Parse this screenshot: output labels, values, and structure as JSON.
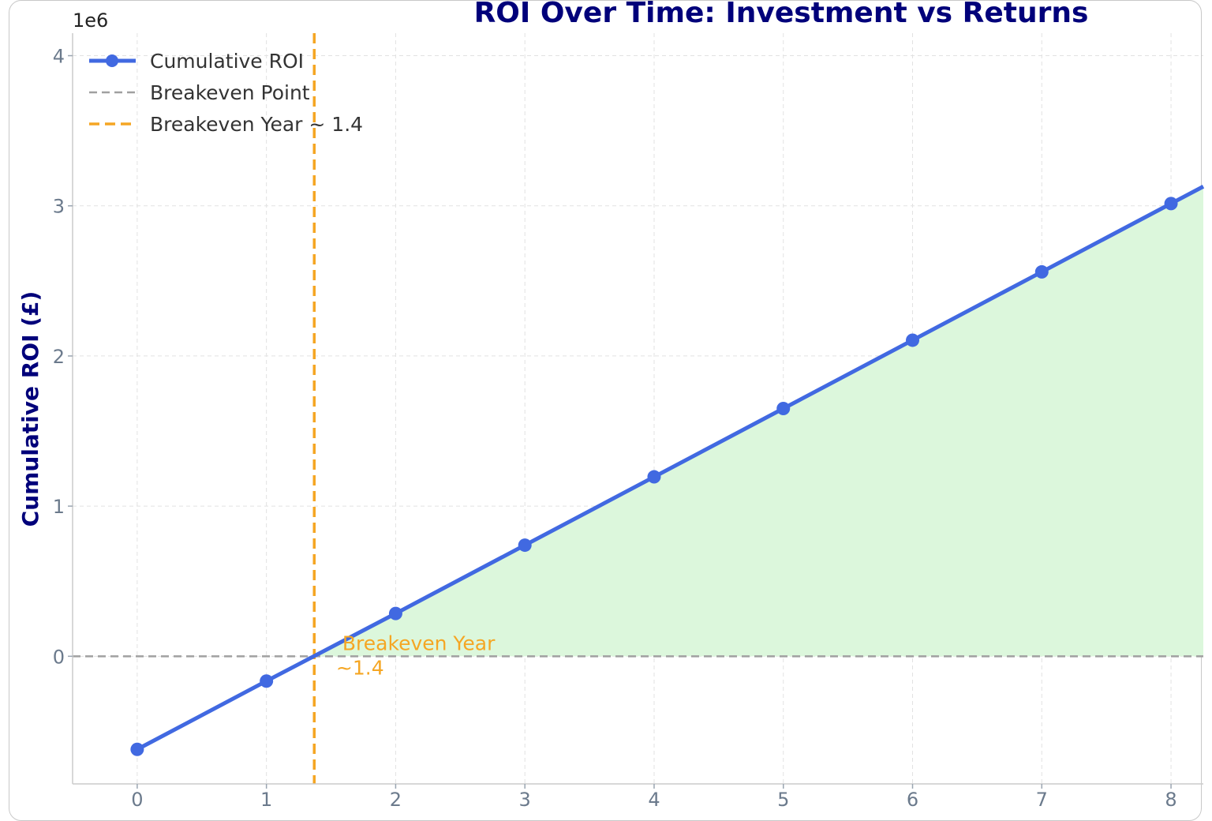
{
  "chart_data": {
    "type": "line",
    "title": "ROI Over Time: Investment vs Returns",
    "xlabel": "",
    "ylabel": "Cumulative ROI (£)",
    "y_offset_label": "1e6",
    "x": [
      0,
      1,
      2,
      3,
      4,
      5,
      6,
      7,
      8
    ],
    "x_ticks": [
      0,
      1,
      2,
      3,
      4,
      5,
      6,
      7,
      8
    ],
    "y_ticks": [
      0,
      1,
      2,
      3,
      4
    ],
    "xlim": [
      -0.5,
      8.25
    ],
    "ylim": [
      -850000,
      4150000
    ],
    "grid": true,
    "legend_position": "top-left",
    "series": [
      {
        "name": "Cumulative ROI",
        "values": [
          -620000,
          -165000,
          285000,
          740000,
          1195000,
          1650000,
          2105000,
          2560000,
          3015000
        ],
        "color": "#4169e1",
        "style": "solid-line-with-markers",
        "fill_above_zero": "#dcf7dc"
      }
    ],
    "reference_lines": [
      {
        "name": "Breakeven Point",
        "orientation": "horizontal",
        "value": 0,
        "color": "#a0a0a0",
        "style": "dashed"
      },
      {
        "name": "Breakeven Year ~ 1.4",
        "orientation": "vertical",
        "value": 1.37,
        "color": "#f5a623",
        "style": "dashed"
      }
    ],
    "annotation": {
      "line1": "Breakeven Year",
      "line2": "~1.4",
      "x": 1.6,
      "y": 0,
      "color": "#f5a623"
    }
  }
}
